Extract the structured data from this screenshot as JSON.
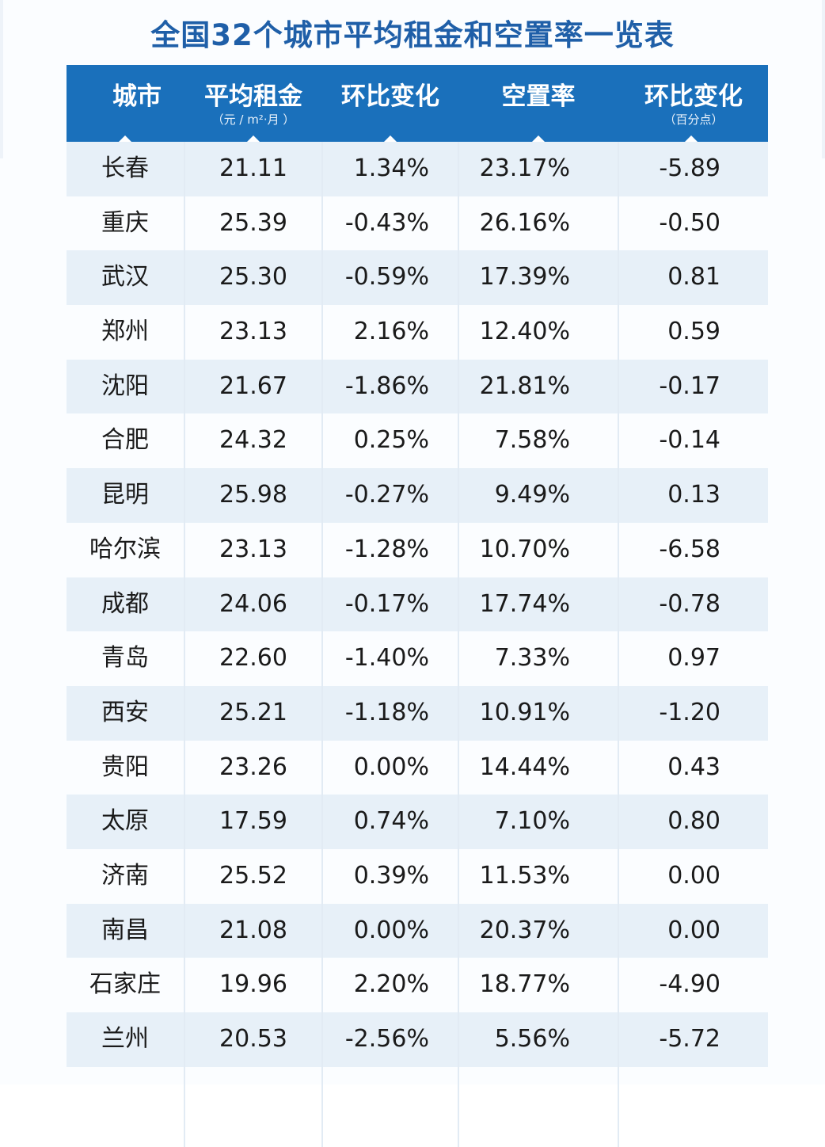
{
  "title": "全国32个城市平均租金和空置率一览表",
  "colors": {
    "header_bg": "#1a70bb",
    "title": "#1f5fa8",
    "row_alt": "#e7f0f8"
  },
  "header": {
    "city": "城市",
    "rent": "平均租金",
    "rent_unit": "（元 / m²·月 ）",
    "rent_change": "环比变化",
    "vacancy": "空置率",
    "vacancy_change": "环比变化",
    "vacancy_change_unit": "（百分点）"
  },
  "rows": [
    {
      "city": "长春",
      "rent": "21.11",
      "rent_change": "1.34%",
      "vacancy": "23.17%",
      "vacancy_change": "-5.89"
    },
    {
      "city": "重庆",
      "rent": "25.39",
      "rent_change": "-0.43%",
      "vacancy": "26.16%",
      "vacancy_change": "-0.50"
    },
    {
      "city": "武汉",
      "rent": "25.30",
      "rent_change": "-0.59%",
      "vacancy": "17.39%",
      "vacancy_change": "0.81"
    },
    {
      "city": "郑州",
      "rent": "23.13",
      "rent_change": "2.16%",
      "vacancy": "12.40%",
      "vacancy_change": "0.59"
    },
    {
      "city": "沈阳",
      "rent": "21.67",
      "rent_change": "-1.86%",
      "vacancy": "21.81%",
      "vacancy_change": "-0.17"
    },
    {
      "city": "合肥",
      "rent": "24.32",
      "rent_change": "0.25%",
      "vacancy": "7.58%",
      "vacancy_change": "-0.14"
    },
    {
      "city": "昆明",
      "rent": "25.98",
      "rent_change": "-0.27%",
      "vacancy": "9.49%",
      "vacancy_change": "0.13"
    },
    {
      "city": "哈尔滨",
      "rent": "23.13",
      "rent_change": "-1.28%",
      "vacancy": "10.70%",
      "vacancy_change": "-6.58"
    },
    {
      "city": "成都",
      "rent": "24.06",
      "rent_change": "-0.17%",
      "vacancy": "17.74%",
      "vacancy_change": "-0.78"
    },
    {
      "city": "青岛",
      "rent": "22.60",
      "rent_change": "-1.40%",
      "vacancy": "7.33%",
      "vacancy_change": "0.97"
    },
    {
      "city": "西安",
      "rent": "25.21",
      "rent_change": "-1.18%",
      "vacancy": "10.91%",
      "vacancy_change": "-1.20"
    },
    {
      "city": "贵阳",
      "rent": "23.26",
      "rent_change": "0.00%",
      "vacancy": "14.44%",
      "vacancy_change": "0.43"
    },
    {
      "city": "太原",
      "rent": "17.59",
      "rent_change": "0.74%",
      "vacancy": "7.10%",
      "vacancy_change": "0.80"
    },
    {
      "city": "济南",
      "rent": "25.52",
      "rent_change": "0.39%",
      "vacancy": "11.53%",
      "vacancy_change": "0.00"
    },
    {
      "city": "南昌",
      "rent": "21.08",
      "rent_change": "0.00%",
      "vacancy": "20.37%",
      "vacancy_change": "0.00"
    },
    {
      "city": "石家庄",
      "rent": "19.96",
      "rent_change": "2.20%",
      "vacancy": "18.77%",
      "vacancy_change": "-4.90"
    },
    {
      "city": "兰州",
      "rent": "20.53",
      "rent_change": "-2.56%",
      "vacancy": "5.56%",
      "vacancy_change": "-5.72"
    }
  ]
}
